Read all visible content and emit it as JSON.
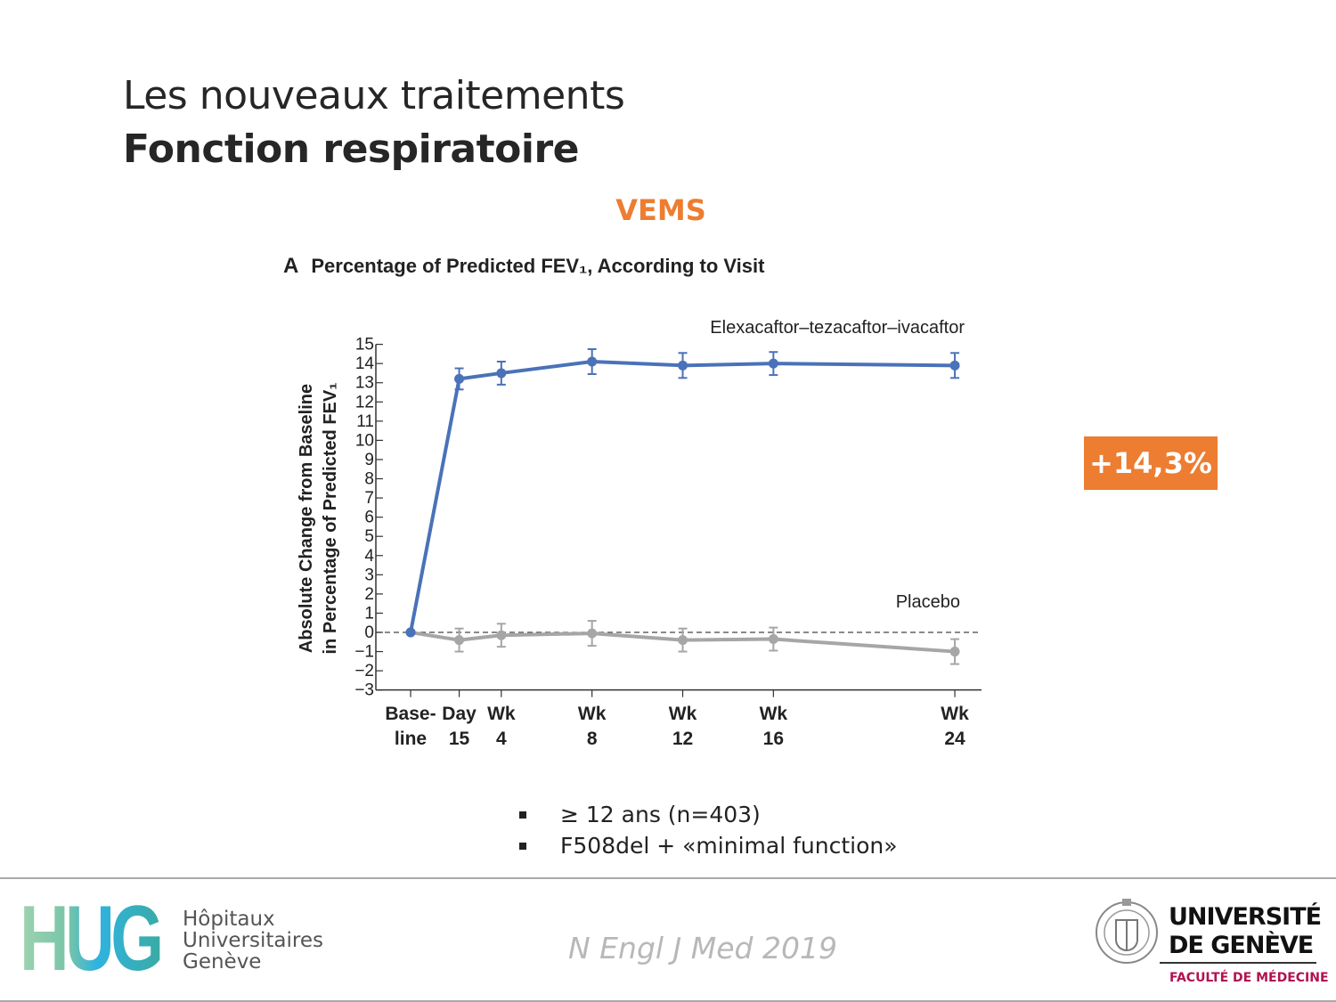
{
  "slide": {
    "title_line1": "Les nouveaux traitements",
    "title_line2": "Fonction respiratoire",
    "section_label": "VEMS",
    "highlight_badge": "+14,3%",
    "accent_color": "#ED7D31",
    "bullets": [
      "≥ 12 ans (n=403)",
      "F508del + «minimal function»"
    ],
    "citation": "N Engl J Med 2019"
  },
  "footer": {
    "hug_logo_letters": "HUG",
    "hug_name_lines": [
      "Hôpitaux",
      "Universitaires",
      "Genève"
    ],
    "unige_lines": [
      "UNIVERSITÉ",
      "DE GENÈVE"
    ],
    "unige_faculty": "FACULTÉ DE MÉDECINE"
  },
  "chart_data": {
    "type": "line",
    "panel_letter": "A",
    "title": "Percentage of Predicted FEV₁, According to Visit",
    "ylabel_line1": "Absolute Change from Baseline",
    "ylabel_line2": "in Percentage of Predicted FEV₁",
    "ylim": [
      -3,
      15
    ],
    "yticks": [
      15,
      14,
      13,
      12,
      11,
      10,
      9,
      8,
      7,
      6,
      5,
      4,
      3,
      2,
      1,
      0,
      -1,
      -2,
      -3
    ],
    "categories": [
      {
        "line1": "Base-",
        "line2": "line"
      },
      {
        "line1": "Day",
        "line2": "15"
      },
      {
        "line1": "Wk",
        "line2": "4"
      },
      {
        "line1": "Wk",
        "line2": "8"
      },
      {
        "line1": "Wk",
        "line2": "12"
      },
      {
        "line1": "Wk",
        "line2": "16"
      },
      {
        "line1": "Wk",
        "line2": "24"
      }
    ],
    "reference_line": 0,
    "grid": false,
    "series": [
      {
        "name": "Elexacaftor–tezacaftor–ivacaftor",
        "color": "#4A72B8",
        "values": [
          0,
          13.2,
          13.5,
          14.1,
          13.9,
          14.0,
          13.9
        ],
        "error": [
          0,
          0.55,
          0.6,
          0.65,
          0.65,
          0.6,
          0.65
        ]
      },
      {
        "name": "Placebo",
        "color": "#A6A6A6",
        "values": [
          0,
          -0.4,
          -0.15,
          -0.05,
          -0.4,
          -0.35,
          -1.0
        ],
        "error": [
          0,
          0.6,
          0.6,
          0.65,
          0.6,
          0.6,
          0.65
        ]
      }
    ]
  }
}
